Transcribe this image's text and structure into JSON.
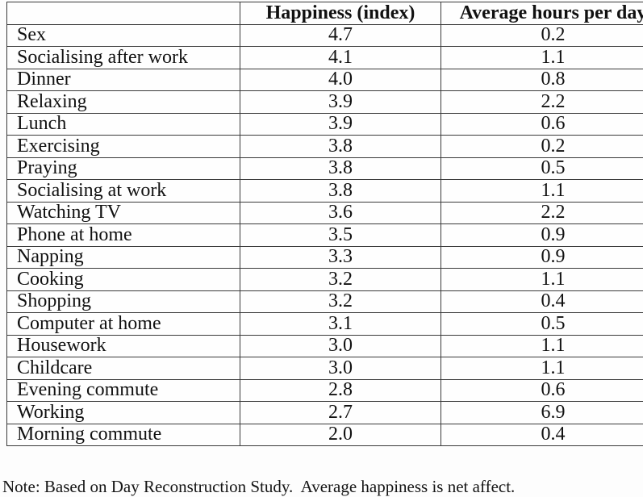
{
  "table": {
    "headers": {
      "activity": "",
      "happiness": "Happiness (index)",
      "hours": "Average hours per day"
    },
    "rows": [
      {
        "activity": "Sex",
        "happiness": "4.7",
        "hours": "0.2"
      },
      {
        "activity": "Socialising after work",
        "happiness": "4.1",
        "hours": "1.1"
      },
      {
        "activity": "Dinner",
        "happiness": "4.0",
        "hours": "0.8"
      },
      {
        "activity": "Relaxing",
        "happiness": "3.9",
        "hours": "2.2"
      },
      {
        "activity": "Lunch",
        "happiness": "3.9",
        "hours": "0.6"
      },
      {
        "activity": "Exercising",
        "happiness": "3.8",
        "hours": "0.2"
      },
      {
        "activity": "Praying",
        "happiness": "3.8",
        "hours": "0.5"
      },
      {
        "activity": "Socialising at work",
        "happiness": "3.8",
        "hours": "1.1"
      },
      {
        "activity": "Watching TV",
        "happiness": "3.6",
        "hours": "2.2"
      },
      {
        "activity": "Phone at home",
        "happiness": "3.5",
        "hours": "0.9"
      },
      {
        "activity": "Napping",
        "happiness": "3.3",
        "hours": "0.9"
      },
      {
        "activity": "Cooking",
        "happiness": "3.2",
        "hours": "1.1"
      },
      {
        "activity": "Shopping",
        "happiness": "3.2",
        "hours": "0.4"
      },
      {
        "activity": "Computer at home",
        "happiness": "3.1",
        "hours": "0.5"
      },
      {
        "activity": "Housework",
        "happiness": "3.0",
        "hours": "1.1"
      },
      {
        "activity": "Childcare",
        "happiness": "3.0",
        "hours": "1.1"
      },
      {
        "activity": "Evening commute",
        "happiness": "2.8",
        "hours": "0.6"
      },
      {
        "activity": "Working",
        "happiness": "2.7",
        "hours": "6.9"
      },
      {
        "activity": "Morning commute",
        "happiness": "2.0",
        "hours": "0.4"
      }
    ]
  },
  "note": "Note: Based on Day Reconstruction Study.  Average happiness is net affect.",
  "colors": {
    "border": "#3a3a3a",
    "background": "#fdfdfd",
    "text": "#111111"
  },
  "chart_data": {
    "type": "table",
    "columns": [
      "",
      "Happiness (index)",
      "Average hours per day"
    ],
    "rows": [
      [
        "Sex",
        4.7,
        0.2
      ],
      [
        "Socialising after work",
        4.1,
        1.1
      ],
      [
        "Dinner",
        4.0,
        0.8
      ],
      [
        "Relaxing",
        3.9,
        2.2
      ],
      [
        "Lunch",
        3.9,
        0.6
      ],
      [
        "Exercising",
        3.8,
        0.2
      ],
      [
        "Praying",
        3.8,
        0.5
      ],
      [
        "Socialising at work",
        3.8,
        1.1
      ],
      [
        "Watching TV",
        3.6,
        2.2
      ],
      [
        "Phone at home",
        3.5,
        0.9
      ],
      [
        "Napping",
        3.3,
        0.9
      ],
      [
        "Cooking",
        3.2,
        1.1
      ],
      [
        "Shopping",
        3.2,
        0.4
      ],
      [
        "Computer at home",
        3.1,
        0.5
      ],
      [
        "Housework",
        3.0,
        1.1
      ],
      [
        "Childcare",
        3.0,
        1.1
      ],
      [
        "Evening commute",
        2.8,
        0.6
      ],
      [
        "Working",
        2.7,
        6.9
      ],
      [
        "Morning commute",
        2.0,
        0.4
      ]
    ],
    "note": "Note: Based on Day Reconstruction Study.  Average happiness is net affect."
  }
}
